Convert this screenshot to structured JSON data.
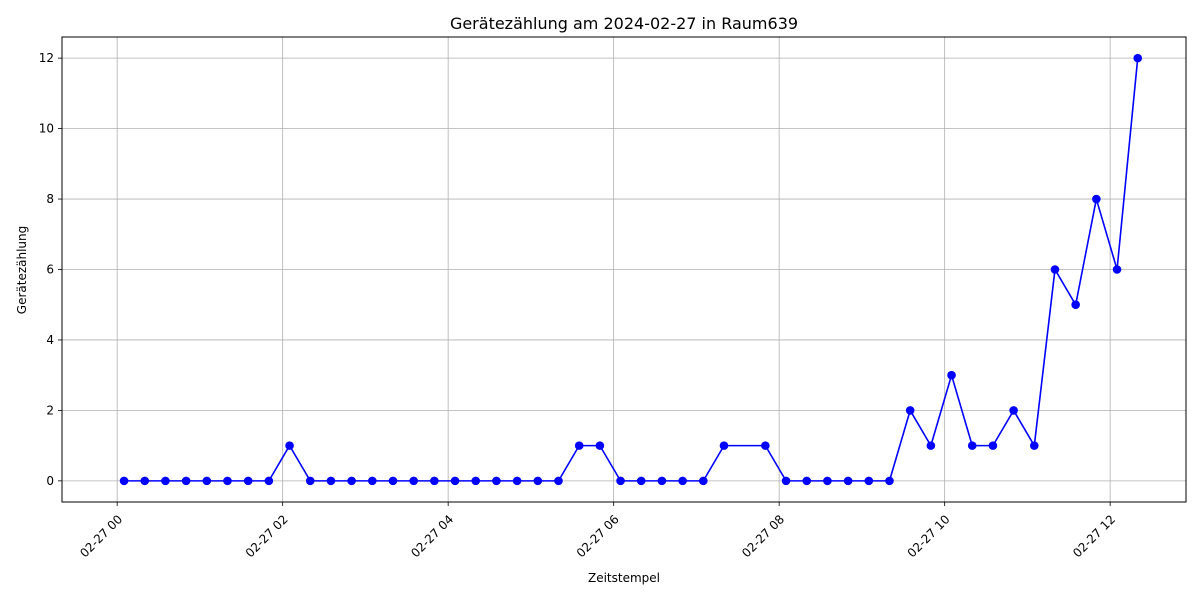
{
  "chart_data": {
    "type": "line",
    "title": "Gerätezählung am 2024-02-27 in Raum639",
    "xlabel": "Zeitstempel",
    "ylabel": "Gerätezählung",
    "x_tick_labels": [
      "02-27 00",
      "02-27 02",
      "02-27 04",
      "02-27 06",
      "02-27 08",
      "02-27 10",
      "02-27 12"
    ],
    "y_tick_labels": [
      "0",
      "2",
      "4",
      "6",
      "8",
      "10",
      "12"
    ],
    "ylim": [
      -0.6,
      12.6
    ],
    "xlim": [
      "2024-02-26 23:20",
      "2024-02-27 12:55"
    ],
    "grid": true,
    "series": [
      {
        "color": "#0000ff",
        "marker": "circle",
        "x": [
          "2024-02-27 00:05",
          "2024-02-27 00:20",
          "2024-02-27 00:35",
          "2024-02-27 00:50",
          "2024-02-27 01:05",
          "2024-02-27 01:20",
          "2024-02-27 01:35",
          "2024-02-27 01:50",
          "2024-02-27 02:05",
          "2024-02-27 02:20",
          "2024-02-27 02:35",
          "2024-02-27 02:50",
          "2024-02-27 03:05",
          "2024-02-27 03:20",
          "2024-02-27 03:35",
          "2024-02-27 03:50",
          "2024-02-27 04:05",
          "2024-02-27 04:20",
          "2024-02-27 04:35",
          "2024-02-27 04:50",
          "2024-02-27 05:05",
          "2024-02-27 05:20",
          "2024-02-27 05:35",
          "2024-02-27 05:50",
          "2024-02-27 06:05",
          "2024-02-27 06:20",
          "2024-02-27 06:35",
          "2024-02-27 06:50",
          "2024-02-27 07:05",
          "2024-02-27 07:20",
          "2024-02-27 07:50",
          "2024-02-27 08:05",
          "2024-02-27 08:20",
          "2024-02-27 08:35",
          "2024-02-27 08:50",
          "2024-02-27 09:05",
          "2024-02-27 09:20",
          "2024-02-27 09:35",
          "2024-02-27 09:50",
          "2024-02-27 10:05",
          "2024-02-27 10:20",
          "2024-02-27 10:35",
          "2024-02-27 10:50",
          "2024-02-27 11:05",
          "2024-02-27 11:20",
          "2024-02-27 11:35",
          "2024-02-27 11:50",
          "2024-02-27 12:05",
          "2024-02-27 12:20"
        ],
        "values": [
          0,
          0,
          0,
          0,
          0,
          0,
          0,
          0,
          1,
          0,
          0,
          0,
          0,
          0,
          0,
          0,
          0,
          0,
          0,
          0,
          0,
          0,
          1,
          1,
          0,
          0,
          0,
          0,
          0,
          1,
          1,
          0,
          0,
          0,
          0,
          0,
          0,
          2,
          1,
          3,
          1,
          1,
          2,
          1,
          6,
          5,
          8,
          6,
          12
        ]
      }
    ]
  }
}
